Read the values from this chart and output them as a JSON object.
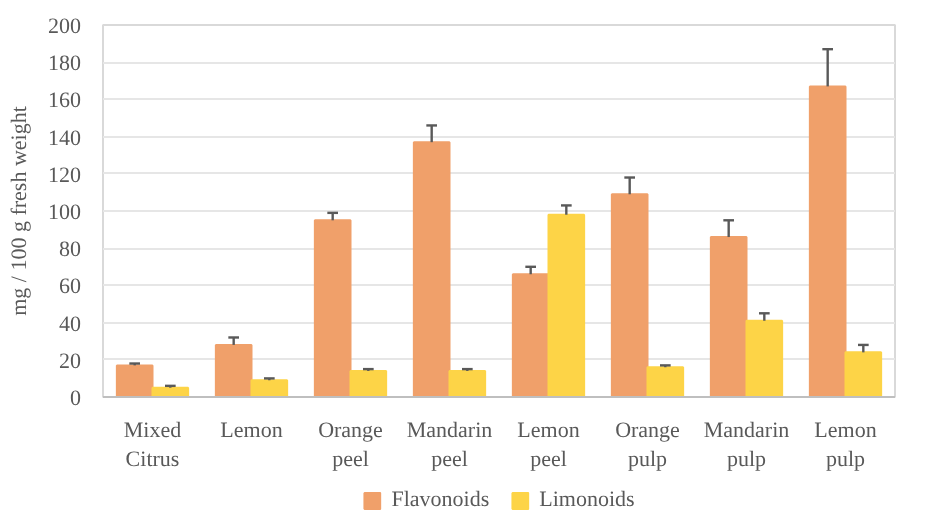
{
  "chart_data": {
    "type": "bar",
    "ylabel": "mg / 100 g fresh weight",
    "categories": [
      "Mixed Citrus",
      "Lemon",
      "Orange peel",
      "Mandarin peel",
      "Lemon peel",
      "Orange pulp",
      "Mandarin pulp",
      "Lemon pulp"
    ],
    "series": [
      {
        "name": "Flavonoids",
        "color": "#f0a06a",
        "values": [
          17,
          28,
          95,
          137,
          66,
          109,
          86,
          167
        ],
        "errors": [
          [
            17,
            18
          ],
          [
            28,
            32
          ],
          [
            95,
            99
          ],
          [
            137,
            146
          ],
          [
            66,
            70
          ],
          [
            109,
            118
          ],
          [
            86,
            95
          ],
          [
            167,
            187
          ]
        ]
      },
      {
        "name": "Limonoids",
        "color": "#fdd447",
        "values": [
          5,
          9,
          14,
          14,
          98,
          16,
          41,
          24
        ],
        "errors": [
          [
            5,
            6
          ],
          [
            9,
            10
          ],
          [
            14,
            15
          ],
          [
            14,
            15
          ],
          [
            98,
            103
          ],
          [
            16,
            17
          ],
          [
            41,
            45
          ],
          [
            24,
            28
          ]
        ]
      }
    ],
    "ylim": [
      0,
      200
    ],
    "yticks": [
      0,
      20,
      40,
      60,
      80,
      100,
      120,
      140,
      160,
      180,
      200
    ],
    "grid": "y",
    "legend": "bottom"
  }
}
